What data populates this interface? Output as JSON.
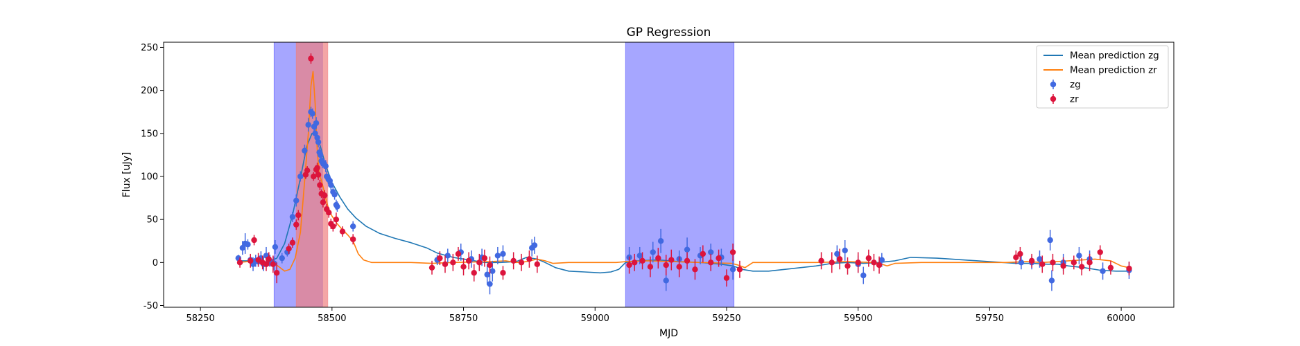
{
  "chart_data": {
    "type": "scatter",
    "title": "GP Regression",
    "xlabel": "MJD",
    "ylabel": "Flux [uJy]",
    "xlim": [
      58180,
      60100
    ],
    "ylim": [
      -52,
      256
    ],
    "xticks": [
      58250,
      58500,
      58750,
      59000,
      59250,
      59500,
      59750,
      60000
    ],
    "yticks": [
      -50,
      0,
      50,
      100,
      150,
      200,
      250
    ],
    "legend_position": "top-right",
    "legend": [
      "Mean prediction zg",
      "Mean prediction zr",
      "zg",
      "zr"
    ],
    "colors": {
      "zg_line": "#1f77b4",
      "zr_line": "#ff7f0e",
      "zg_points": "#4169e1",
      "zr_points": "#dc143c",
      "zg_band": "#4d4dff",
      "zr_band": "#f08080"
    },
    "bands": [
      {
        "series": "zg",
        "x0": 58390,
        "x1": 58482
      },
      {
        "series": "zr",
        "x0": 58432,
        "x1": 58492
      },
      {
        "series": "zg",
        "x0": 59058,
        "x1": 59264
      }
    ],
    "lines": [
      {
        "name": "Mean prediction zg",
        "x": [
          58320,
          58340,
          58360,
          58380,
          58395,
          58410,
          58425,
          58440,
          58452,
          58462,
          58470,
          58478,
          58488,
          58500,
          58515,
          58530,
          58545,
          58565,
          58590,
          58620,
          58650,
          58680,
          58700,
          58730,
          58760,
          58790,
          58820,
          58850,
          58870,
          58890,
          58905,
          58925,
          58950,
          58980,
          59010,
          59030,
          59045,
          59058,
          59080,
          59120,
          59160,
          59200,
          59240,
          59262,
          59280,
          59300,
          59330,
          59360,
          59390,
          59420,
          59450,
          59480,
          59510,
          59540,
          59570,
          59600,
          59650,
          59700,
          59750,
          59800,
          59830,
          59860,
          59880,
          59900,
          59930,
          59960,
          59990,
          60015
        ],
        "y": [
          2,
          2,
          0,
          1,
          5,
          22,
          55,
          98,
          135,
          150,
          148,
          135,
          113,
          93,
          76,
          62,
          52,
          42,
          34,
          28,
          23,
          17,
          11,
          6,
          3,
          0,
          0,
          1,
          6,
          4,
          0,
          -6,
          -10,
          -11,
          -12,
          -11,
          -8,
          0,
          2,
          3,
          1,
          0,
          -2,
          -4,
          -8,
          -10,
          -10,
          -8,
          -6,
          -4,
          -1,
          0,
          -1,
          0,
          2,
          6,
          5,
          3,
          1,
          -1,
          -1,
          -2,
          -2,
          -4,
          -6,
          -9,
          -10,
          -10
        ]
      },
      {
        "name": "Mean prediction zr",
        "x": [
          58320,
          58340,
          58360,
          58380,
          58395,
          58410,
          58420,
          58430,
          58440,
          58448,
          58455,
          58460,
          58464,
          58468,
          58472,
          58476,
          58480,
          58485,
          58490,
          58495,
          58500,
          58510,
          58520,
          58530,
          58540,
          58550,
          58560,
          58575,
          58600,
          58650,
          58690,
          58730,
          58800,
          58830,
          58850,
          58870,
          58890,
          58905,
          58920,
          58950,
          59000,
          59040,
          59058,
          59100,
          59200,
          59260,
          59272,
          59285,
          59300,
          59350,
          59420,
          59480,
          59530,
          59545,
          59555,
          59570,
          59620,
          59700,
          59780,
          59820,
          59850,
          59900,
          59950,
          59980,
          60000,
          60015
        ],
        "y": [
          0,
          1,
          0,
          0,
          -3,
          -10,
          -8,
          5,
          35,
          95,
          150,
          205,
          222,
          185,
          130,
          102,
          95,
          83,
          70,
          60,
          54,
          45,
          38,
          32,
          25,
          10,
          3,
          0,
          0,
          0,
          -1,
          0,
          1,
          2,
          0,
          1,
          4,
          2,
          -1,
          0,
          0,
          0,
          1,
          2,
          0,
          -1,
          -3,
          -6,
          0,
          0,
          0,
          1,
          0,
          -2,
          -4,
          -1,
          0,
          0,
          0,
          1,
          0,
          2,
          4,
          2,
          -4,
          -6
        ]
      }
    ],
    "series": [
      {
        "name": "zg",
        "points": [
          [
            58322,
            5,
            4
          ],
          [
            58330,
            17,
            8
          ],
          [
            58335,
            22,
            12
          ],
          [
            58340,
            21,
            6
          ],
          [
            58345,
            3,
            6
          ],
          [
            58350,
            -2,
            8
          ],
          [
            58355,
            2,
            7
          ],
          [
            58360,
            1,
            6
          ],
          [
            58365,
            5,
            8
          ],
          [
            58370,
            -2,
            8
          ],
          [
            58375,
            8,
            10
          ],
          [
            58382,
            2,
            7
          ],
          [
            58390,
            -1,
            8
          ],
          [
            58392,
            18,
            8
          ],
          [
            58405,
            5,
            6
          ],
          [
            58415,
            12,
            5
          ],
          [
            58425,
            53,
            6
          ],
          [
            58432,
            72,
            7
          ],
          [
            58440,
            100,
            6
          ],
          [
            58448,
            130,
            7
          ],
          [
            58455,
            160,
            8
          ],
          [
            58460,
            175,
            6
          ],
          [
            58463,
            173,
            6
          ],
          [
            58466,
            158,
            6
          ],
          [
            58468,
            150,
            6
          ],
          [
            58470,
            162,
            7
          ],
          [
            58472,
            145,
            6
          ],
          [
            58474,
            140,
            6
          ],
          [
            58476,
            128,
            6
          ],
          [
            58478,
            125,
            6
          ],
          [
            58480,
            118,
            6
          ],
          [
            58482,
            116,
            6
          ],
          [
            58485,
            115,
            6
          ],
          [
            58488,
            112,
            7
          ],
          [
            58490,
            100,
            6
          ],
          [
            58493,
            97,
            6
          ],
          [
            58496,
            95,
            6
          ],
          [
            58498,
            90,
            6
          ],
          [
            58502,
            82,
            6
          ],
          [
            58505,
            79,
            6
          ],
          [
            58508,
            67,
            6
          ],
          [
            58510,
            65,
            6
          ],
          [
            58540,
            42,
            6
          ],
          [
            58700,
            3,
            6
          ],
          [
            58720,
            8,
            8
          ],
          [
            58745,
            12,
            10
          ],
          [
            58765,
            4,
            10
          ],
          [
            58785,
            6,
            10
          ],
          [
            58795,
            -14,
            12
          ],
          [
            58800,
            -25,
            12
          ],
          [
            58805,
            -10,
            12
          ],
          [
            58815,
            8,
            10
          ],
          [
            58825,
            10,
            10
          ],
          [
            58880,
            17,
            10
          ],
          [
            58885,
            20,
            10
          ],
          [
            59065,
            6,
            12
          ],
          [
            59085,
            8,
            10
          ],
          [
            59110,
            12,
            12
          ],
          [
            59125,
            25,
            14
          ],
          [
            59135,
            -21,
            12
          ],
          [
            59160,
            4,
            10
          ],
          [
            59175,
            15,
            14
          ],
          [
            59200,
            8,
            10
          ],
          [
            59220,
            12,
            10
          ],
          [
            59240,
            6,
            10
          ],
          [
            59262,
            -8,
            12
          ],
          [
            59460,
            10,
            10
          ],
          [
            59475,
            14,
            12
          ],
          [
            59500,
            -2,
            10
          ],
          [
            59510,
            -15,
            10
          ],
          [
            59545,
            3,
            8
          ],
          [
            59810,
            0,
            8
          ],
          [
            59830,
            0,
            8
          ],
          [
            59845,
            4,
            10
          ],
          [
            59865,
            26,
            12
          ],
          [
            59868,
            -21,
            12
          ],
          [
            59890,
            0,
            10
          ],
          [
            59920,
            8,
            10
          ],
          [
            59940,
            4,
            10
          ],
          [
            59965,
            -10,
            10
          ],
          [
            60015,
            -9,
            10
          ]
        ]
      },
      {
        "name": "zr",
        "points": [
          [
            58325,
            0,
            6
          ],
          [
            58345,
            2,
            8
          ],
          [
            58352,
            26,
            6
          ],
          [
            58360,
            3,
            8
          ],
          [
            58368,
            0,
            8
          ],
          [
            58375,
            -2,
            8
          ],
          [
            58380,
            4,
            8
          ],
          [
            58388,
            -2,
            10
          ],
          [
            58395,
            -12,
            12
          ],
          [
            58418,
            16,
            6
          ],
          [
            58425,
            23,
            6
          ],
          [
            58432,
            44,
            6
          ],
          [
            58436,
            55,
            6
          ],
          [
            58450,
            102,
            5
          ],
          [
            58453,
            107,
            5
          ],
          [
            58460,
            237,
            6
          ],
          [
            58465,
            100,
            5
          ],
          [
            58470,
            108,
            5
          ],
          [
            58472,
            110,
            6
          ],
          [
            58474,
            102,
            6
          ],
          [
            58477,
            90,
            6
          ],
          [
            58480,
            80,
            5
          ],
          [
            58483,
            70,
            6
          ],
          [
            58486,
            78,
            6
          ],
          [
            58490,
            62,
            6
          ],
          [
            58494,
            58,
            6
          ],
          [
            58498,
            45,
            6
          ],
          [
            58502,
            42,
            6
          ],
          [
            58508,
            50,
            8
          ],
          [
            58520,
            36,
            6
          ],
          [
            58540,
            27,
            6
          ],
          [
            58690,
            -6,
            8
          ],
          [
            58705,
            5,
            8
          ],
          [
            58715,
            -2,
            10
          ],
          [
            58730,
            0,
            10
          ],
          [
            58740,
            10,
            8
          ],
          [
            58750,
            -5,
            10
          ],
          [
            58760,
            2,
            10
          ],
          [
            58770,
            -12,
            10
          ],
          [
            58780,
            0,
            10
          ],
          [
            58790,
            5,
            10
          ],
          [
            58800,
            -3,
            10
          ],
          [
            58825,
            -12,
            8
          ],
          [
            58845,
            2,
            10
          ],
          [
            58860,
            0,
            10
          ],
          [
            58875,
            4,
            10
          ],
          [
            58890,
            -2,
            10
          ],
          [
            59065,
            -3,
            10
          ],
          [
            59075,
            0,
            10
          ],
          [
            59090,
            2,
            10
          ],
          [
            59105,
            -5,
            12
          ],
          [
            59120,
            5,
            12
          ],
          [
            59135,
            -3,
            12
          ],
          [
            59145,
            3,
            12
          ],
          [
            59160,
            -5,
            12
          ],
          [
            59175,
            2,
            10
          ],
          [
            59190,
            -8,
            12
          ],
          [
            59205,
            10,
            10
          ],
          [
            59220,
            0,
            10
          ],
          [
            59235,
            5,
            10
          ],
          [
            59250,
            -18,
            10
          ],
          [
            59262,
            12,
            10
          ],
          [
            59275,
            -8,
            10
          ],
          [
            59430,
            2,
            10
          ],
          [
            59450,
            0,
            12
          ],
          [
            59465,
            4,
            12
          ],
          [
            59480,
            -4,
            10
          ],
          [
            59500,
            0,
            12
          ],
          [
            59520,
            5,
            10
          ],
          [
            59530,
            0,
            10
          ],
          [
            59540,
            -3,
            10
          ],
          [
            59800,
            6,
            8
          ],
          [
            59808,
            10,
            8
          ],
          [
            59830,
            2,
            8
          ],
          [
            59850,
            -2,
            10
          ],
          [
            59870,
            0,
            10
          ],
          [
            59890,
            -4,
            10
          ],
          [
            59910,
            0,
            8
          ],
          [
            59925,
            -5,
            10
          ],
          [
            59940,
            0,
            10
          ],
          [
            59960,
            12,
            8
          ],
          [
            59980,
            -6,
            8
          ],
          [
            60015,
            -7,
            8
          ]
        ]
      }
    ]
  }
}
